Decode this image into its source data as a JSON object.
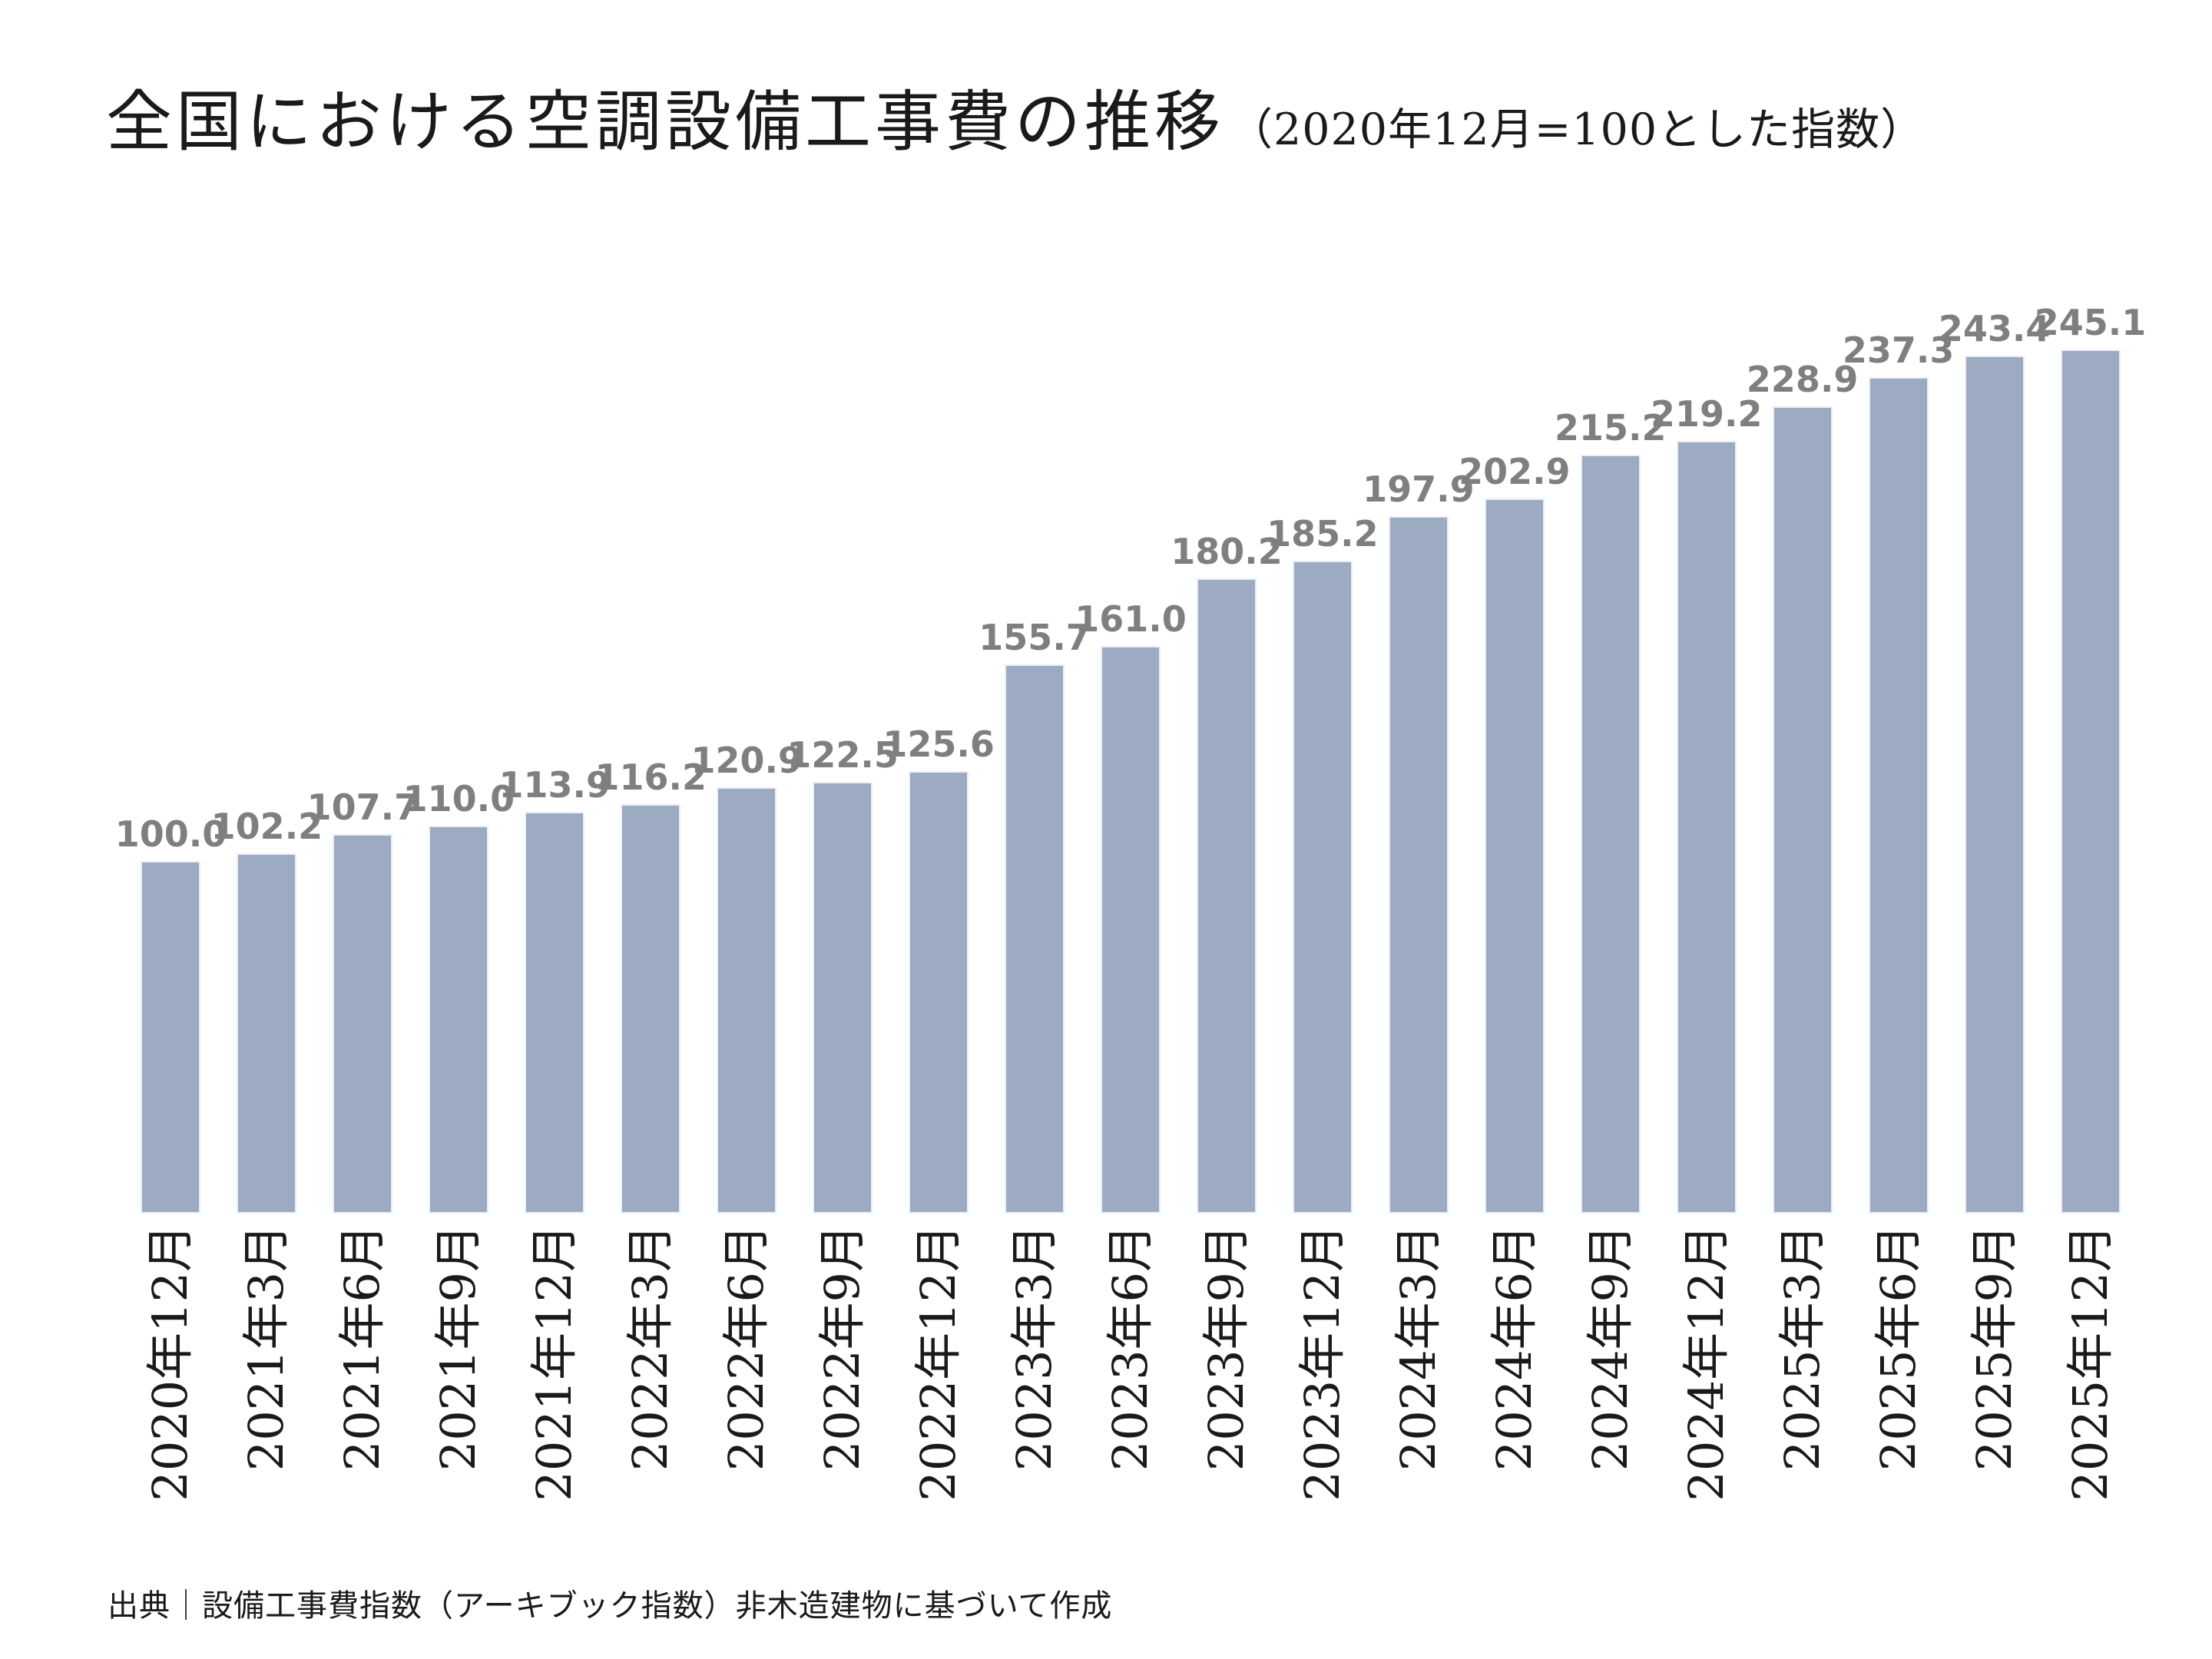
{
  "title": {
    "main": "全国における空調設備工事費の推移",
    "sub": "（2020年12月=100とした指数）"
  },
  "source": "出典｜設備工事費指数（アーキブック指数）非木造建物に基づいて作成",
  "colors": {
    "bar": "#9caac2",
    "bar_edge": "#eceef4",
    "data_label": "#7f7f7f",
    "title_text": "#1a1a1a"
  },
  "chart_data": {
    "type": "bar",
    "title": "全国における空調設備工事費の推移（2020年12月=100とした指数）",
    "categories": [
      "2020年12月",
      "2021年3月",
      "2021年6月",
      "2021年9月",
      "2021年12月",
      "2022年3月",
      "2022年6月",
      "2022年9月",
      "2022年12月",
      "2023年3月",
      "2023年6月",
      "2023年9月",
      "2023年12月",
      "2024年3月",
      "2024年6月",
      "2024年9月",
      "2024年12月",
      "2025年3月",
      "2025年6月",
      "2025年9月",
      "2025年12月"
    ],
    "values": [
      100.0,
      102.2,
      107.7,
      110.0,
      113.9,
      116.2,
      120.9,
      122.5,
      125.6,
      155.7,
      161.0,
      180.2,
      185.2,
      197.9,
      202.9,
      215.2,
      219.2,
      228.9,
      237.3,
      243.4,
      245.1
    ],
    "xlabel": "",
    "ylabel": "",
    "ylim": [
      0,
      250
    ],
    "grid": false,
    "legend": false,
    "data_labels": true,
    "data_label_format": "one-decimal",
    "base_index_note": "2020年12月=100"
  }
}
